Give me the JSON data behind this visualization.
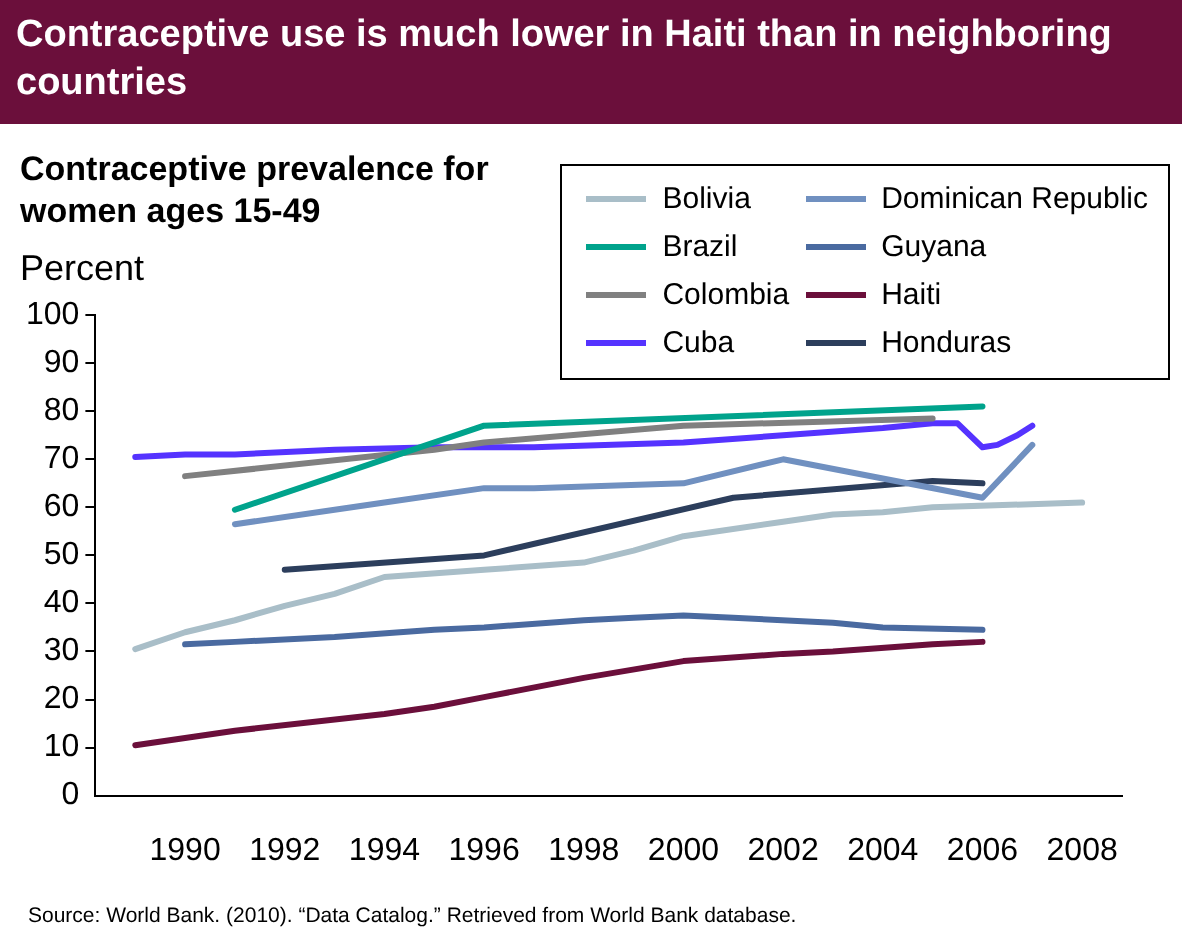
{
  "chart_data": {
    "type": "line",
    "title": "Contraceptive use is much lower in Haiti than in neighboring countries",
    "subtitle": "Contraceptive prevalence for women ages 15-49",
    "ylabel": "Percent",
    "xlim": [
      1988.2,
      2008.8
    ],
    "xticks": [
      1990,
      1992,
      1994,
      1996,
      1998,
      2000,
      2002,
      2004,
      2006,
      2008
    ],
    "ylim": [
      0,
      100
    ],
    "yticks": [
      0,
      10,
      20,
      30,
      40,
      50,
      60,
      70,
      80,
      90,
      100
    ],
    "grid": false,
    "legend": "top right",
    "marker": "none",
    "line_style": "solid",
    "annotations": [
      "Source: World Bank. (2010). “Data Catalog.” Retrieved from World Bank database."
    ],
    "series": [
      {
        "name": "Bolivia",
        "color": "#a9bec8",
        "x": [
          1989,
          1990,
          1991,
          1992,
          1993,
          1994,
          1996,
          1998,
          1999,
          2000,
          2002,
          2003,
          2004,
          2005,
          2008
        ],
        "values": [
          30.5,
          34,
          36.5,
          39.5,
          42,
          45.5,
          47,
          48.5,
          51,
          54,
          57,
          58.5,
          59,
          60,
          61
        ]
      },
      {
        "name": "Brazil",
        "color": "#00a38c",
        "x": [
          1991,
          1996,
          2006
        ],
        "values": [
          59.5,
          77,
          81
        ]
      },
      {
        "name": "Colombia",
        "color": "#808080",
        "x": [
          1990,
          1995,
          1996,
          2000,
          2005
        ],
        "values": [
          66.5,
          72,
          73.5,
          77,
          78.5
        ]
      },
      {
        "name": "Cuba",
        "color": "#5533ff",
        "x": [
          1989,
          1990,
          1991,
          1993,
          1995,
          1997,
          2000,
          2002,
          2004,
          2005,
          2005.5,
          2006,
          2006.3,
          2006.7,
          2007
        ],
        "values": [
          70.5,
          71,
          71,
          72,
          72.5,
          72.5,
          73.5,
          75,
          76.5,
          77.5,
          77.5,
          72.5,
          73,
          75,
          77
        ]
      },
      {
        "name": "Dominican Republic",
        "color": "#7090c0",
        "x": [
          1991,
          1994,
          1996,
          1997,
          2000,
          2002,
          2004,
          2006,
          2007
        ],
        "values": [
          56.5,
          61,
          64,
          64,
          65,
          70,
          66,
          62,
          73
        ]
      },
      {
        "name": "Guyana",
        "color": "#4a6aa0",
        "x": [
          1990,
          1991,
          1993,
          1995,
          1996,
          1998,
          1999,
          2000,
          2001,
          2003,
          2004,
          2006
        ],
        "values": [
          31.5,
          32,
          33,
          34.5,
          35,
          36.5,
          37,
          37.5,
          37,
          36,
          35,
          34.5
        ]
      },
      {
        "name": "Haiti",
        "color": "#6b0f3b",
        "x": [
          1989,
          1990,
          1991,
          1994,
          1995,
          1996,
          1998,
          2000,
          2002,
          2003,
          2005,
          2006
        ],
        "values": [
          10.5,
          12,
          13.5,
          17,
          18.5,
          20.5,
          24.5,
          28,
          29.5,
          30,
          31.5,
          32
        ]
      },
      {
        "name": "Honduras",
        "color": "#2c3e5c",
        "x": [
          1992,
          1996,
          2001,
          2005,
          2006
        ],
        "values": [
          47,
          50,
          62,
          65.5,
          65
        ]
      }
    ]
  }
}
